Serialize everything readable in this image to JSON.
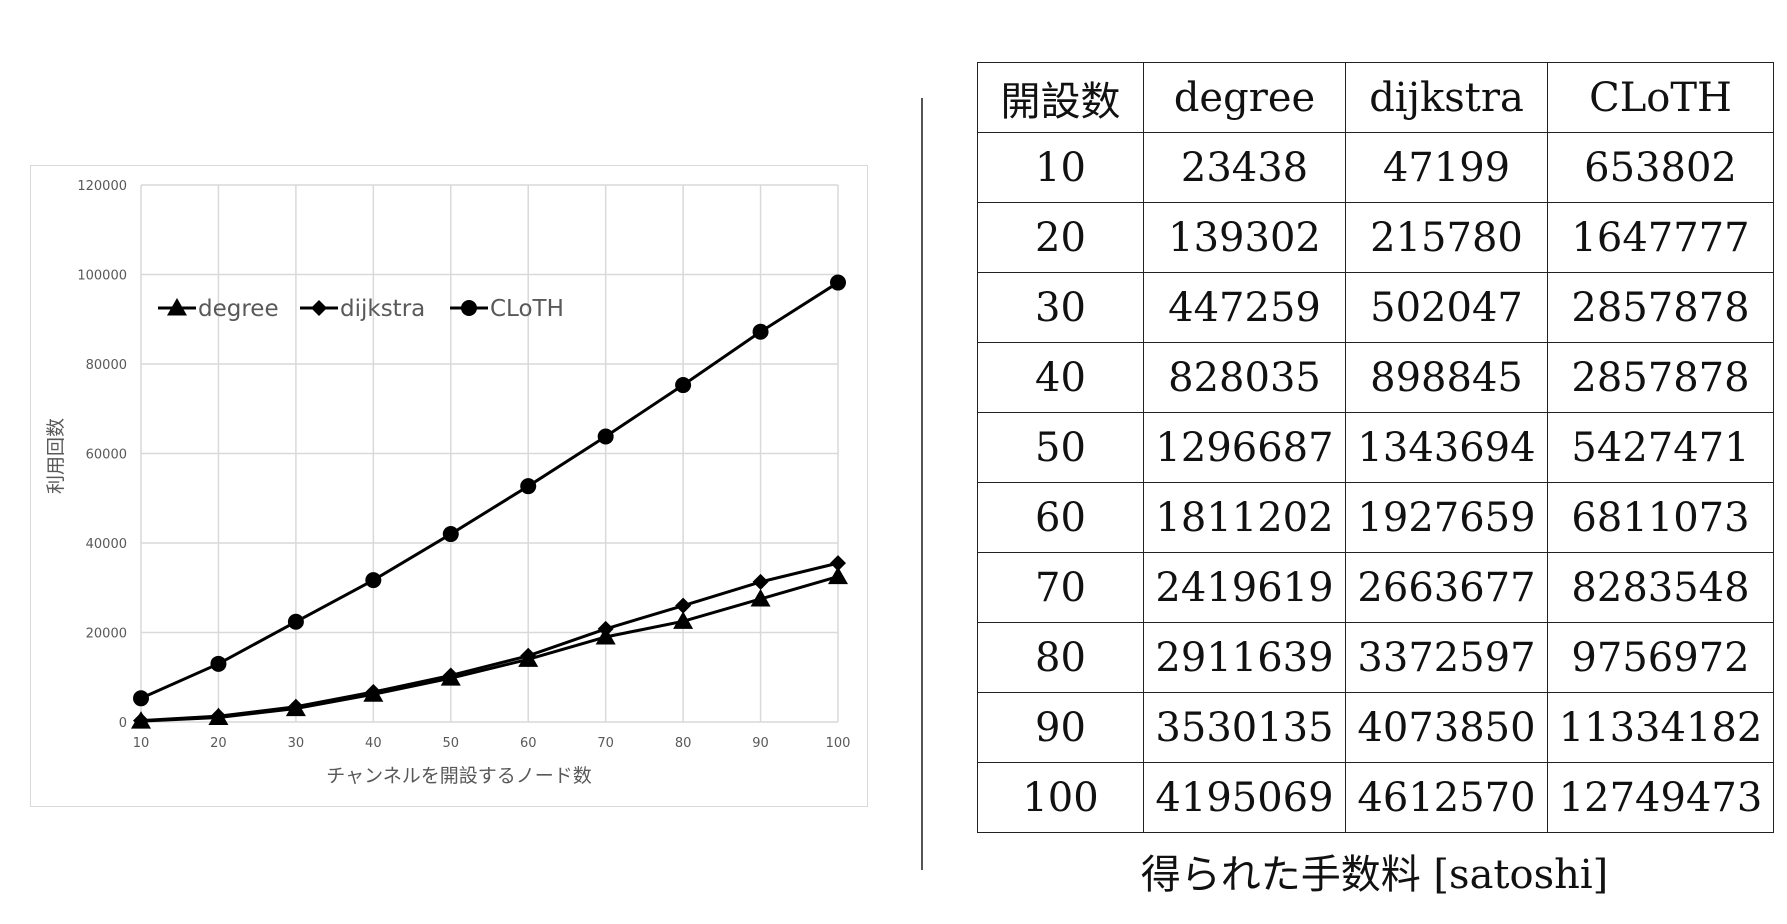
{
  "chart_data": {
    "type": "line",
    "title": "",
    "xlabel": "チャンネルを開設するノード数",
    "ylabel": "利用回数",
    "x": [
      10,
      20,
      30,
      40,
      50,
      60,
      70,
      80,
      90,
      100
    ],
    "x_tick_labels": [
      "10",
      "20",
      "30",
      "40",
      "50",
      "60",
      "70",
      "80",
      "90",
      "100"
    ],
    "y_tick_labels": [
      "0",
      "20000",
      "40000",
      "60000",
      "80000",
      "100000",
      "120000"
    ],
    "ylim": [
      0,
      120000
    ],
    "grid": true,
    "legend_position": "top-left",
    "series": [
      {
        "name": "degree",
        "marker": "triangle",
        "values": [
          200,
          1000,
          3000,
          6200,
          9800,
          14000,
          19000,
          22500,
          27500,
          32500
        ]
      },
      {
        "name": "dijkstra",
        "marker": "diamond",
        "values": [
          300,
          1300,
          3400,
          6700,
          10400,
          14800,
          20800,
          26000,
          31300,
          35500
        ]
      },
      {
        "name": "CLoTH",
        "marker": "circle",
        "values": [
          5300,
          13000,
          22400,
          31700,
          42000,
          52700,
          63800,
          75300,
          87200,
          98200
        ]
      }
    ]
  },
  "table": {
    "headers": [
      "開設数",
      "degree",
      "dijkstra",
      "CLoTH"
    ],
    "rows": [
      [
        "10",
        "23438",
        "47199",
        "653802"
      ],
      [
        "20",
        "139302",
        "215780",
        "1647777"
      ],
      [
        "30",
        "447259",
        "502047",
        "2857878"
      ],
      [
        "40",
        "828035",
        "898845",
        "2857878"
      ],
      [
        "50",
        "1296687",
        "1343694",
        "5427471"
      ],
      [
        "60",
        "1811202",
        "1927659",
        "6811073"
      ],
      [
        "70",
        "2419619",
        "2663677",
        "8283548"
      ],
      [
        "80",
        "2911639",
        "3372597",
        "9756972"
      ],
      [
        "90",
        "3530135",
        "4073850",
        "11334182"
      ],
      [
        "100",
        "4195069",
        "4612570",
        "12749473"
      ]
    ],
    "caption": "得られた手数料 [satoshi]"
  },
  "colors": {
    "line": "#000000",
    "grid": "#d9d9d9",
    "axis_text": "#595959"
  }
}
